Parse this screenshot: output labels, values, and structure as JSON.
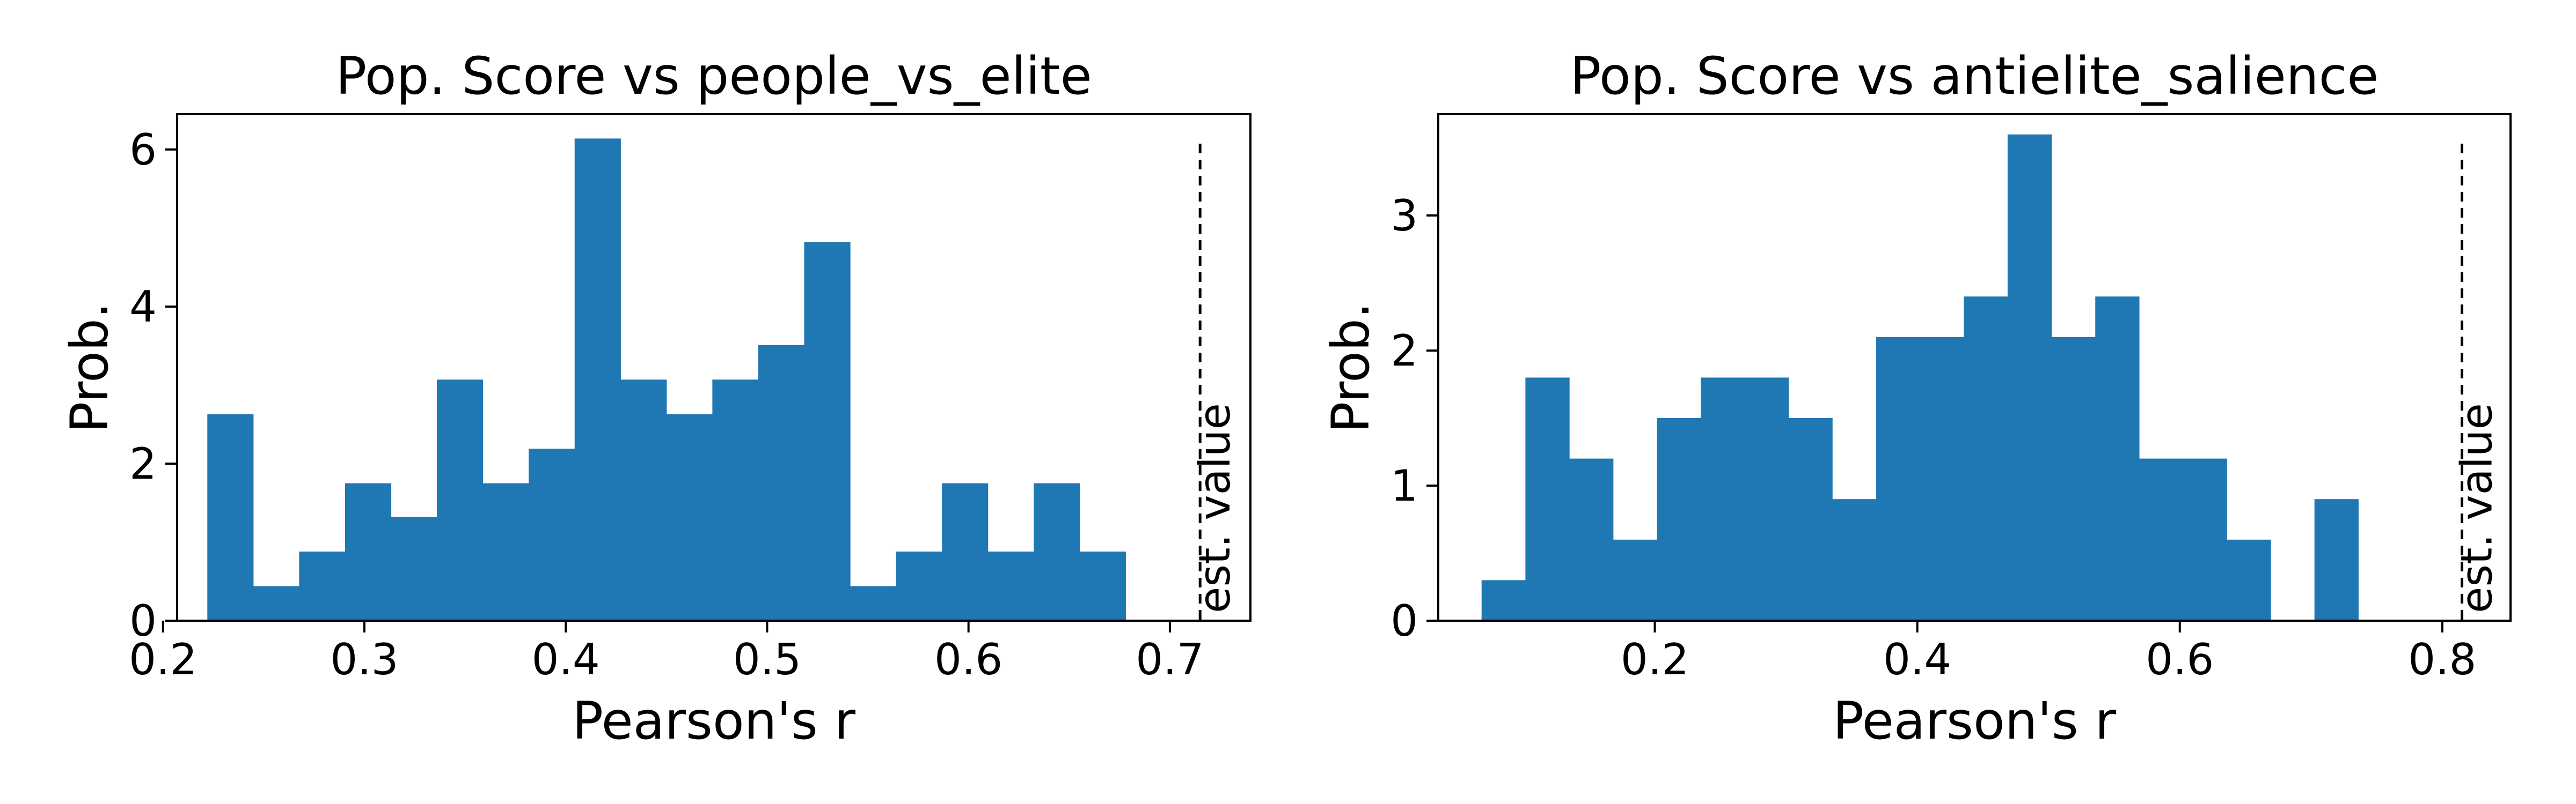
{
  "chart_data": [
    {
      "type": "bar",
      "title": "Pop. Score vs people_vs_elite",
      "xlabel": "Pearson's r",
      "ylabel": "Prob.",
      "xlim": [
        0.207,
        0.74
      ],
      "ylim": [
        0,
        6.45
      ],
      "xticks": [
        0.2,
        0.3,
        0.4,
        0.5,
        0.6,
        0.7
      ],
      "xtick_labels": [
        "0.2",
        "0.3",
        "0.4",
        "0.5",
        "0.6",
        "0.7"
      ],
      "yticks": [
        0,
        2,
        4,
        6
      ],
      "ytick_labels": [
        "0",
        "2",
        "4",
        "6"
      ],
      "bin_edges": [
        0.222,
        0.2448,
        0.2676,
        0.2904,
        0.3132,
        0.336,
        0.3588,
        0.3816,
        0.4044,
        0.4272,
        0.45,
        0.4728,
        0.4956,
        0.5184,
        0.5412,
        0.564,
        0.5868,
        0.6096,
        0.6324,
        0.6552,
        0.678
      ],
      "values": [
        2.63,
        0.44,
        0.88,
        1.75,
        1.32,
        3.07,
        1.75,
        2.19,
        6.14,
        3.07,
        2.63,
        3.07,
        3.51,
        4.82,
        0.44,
        0.88,
        1.75,
        0.88,
        1.75,
        0.88
      ],
      "reference_line": {
        "x": 0.715,
        "label": "est. value",
        "style": "dashed"
      },
      "color": "#1f77b4",
      "grid": false
    },
    {
      "type": "bar",
      "title": "Pop. Score vs antielite_salience",
      "xlabel": "Pearson's r",
      "ylabel": "Prob.",
      "xlim": [
        0.035,
        0.852
      ],
      "ylim": [
        0,
        3.75
      ],
      "xticks": [
        0.2,
        0.4,
        0.6,
        0.8
      ],
      "xtick_labels": [
        "0.2",
        "0.4",
        "0.6",
        "0.8"
      ],
      "yticks": [
        0,
        1,
        2,
        3
      ],
      "ytick_labels": [
        "0",
        "1",
        "2",
        "3"
      ],
      "bin_edges": [
        0.068,
        0.1014,
        0.1348,
        0.1682,
        0.2016,
        0.235,
        0.2684,
        0.3018,
        0.3352,
        0.3686,
        0.402,
        0.4354,
        0.4688,
        0.5022,
        0.5356,
        0.569,
        0.6024,
        0.6358,
        0.6692,
        0.7026,
        0.736
      ],
      "values": [
        0.3,
        1.8,
        1.2,
        0.6,
        1.5,
        1.8,
        1.8,
        1.5,
        0.9,
        2.1,
        2.1,
        2.4,
        3.6,
        2.1,
        2.4,
        1.2,
        1.2,
        0.6,
        0.0,
        0.9
      ],
      "reference_line": {
        "x": 0.815,
        "label": "est. value",
        "style": "dashed"
      },
      "color": "#1f77b4",
      "grid": false
    }
  ]
}
